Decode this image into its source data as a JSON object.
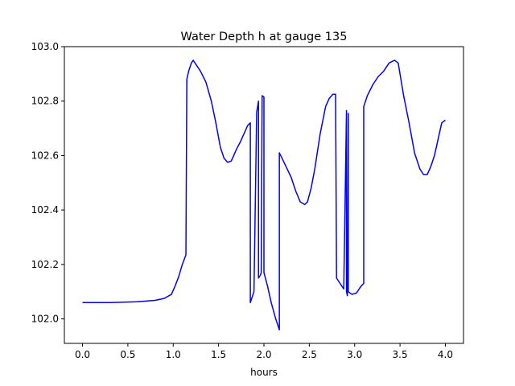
{
  "chart_data": {
    "type": "line",
    "title": "Water Depth h at gauge 135",
    "xlabel": "hours",
    "ylabel": "",
    "xlim": [
      -0.2,
      4.2
    ],
    "ylim": [
      101.91,
      103.0
    ],
    "xticks": [
      0.0,
      0.5,
      1.0,
      1.5,
      2.0,
      2.5,
      3.0,
      3.5,
      4.0
    ],
    "xtick_labels": [
      "0.0",
      "0.5",
      "1.0",
      "1.5",
      "2.0",
      "2.5",
      "3.0",
      "3.5",
      "4.0"
    ],
    "yticks": [
      102.0,
      102.2,
      102.4,
      102.6,
      102.8,
      103.0
    ],
    "ytick_labels": [
      "102.0",
      "102.2",
      "102.4",
      "102.6",
      "102.8",
      "103.0"
    ],
    "grid": false,
    "legend": "none",
    "series": [
      {
        "color": "#0000ff",
        "x": [
          0.0,
          0.3,
          0.6,
          0.8,
          0.9,
          0.98,
          1.02,
          1.06,
          1.1,
          1.14,
          1.15,
          1.17,
          1.2,
          1.22,
          1.26,
          1.3,
          1.36,
          1.42,
          1.47,
          1.52,
          1.56,
          1.6,
          1.64,
          1.68,
          1.7,
          1.74,
          1.78,
          1.82,
          1.85,
          1.85,
          1.88,
          1.89,
          1.92,
          1.94,
          1.94,
          1.96,
          1.97,
          1.98,
          2.0,
          2.0,
          2.04,
          2.08,
          2.13,
          2.17,
          2.17,
          2.2,
          2.25,
          2.3,
          2.35,
          2.4,
          2.45,
          2.48,
          2.52,
          2.56,
          2.62,
          2.68,
          2.72,
          2.76,
          2.79,
          2.8,
          2.8,
          2.84,
          2.88,
          2.91,
          2.91,
          2.92,
          2.93,
          2.93,
          2.97,
          3.02,
          3.07,
          3.1,
          3.1,
          3.14,
          3.2,
          3.26,
          3.32,
          3.38,
          3.44,
          3.48,
          3.5,
          3.54,
          3.6,
          3.66,
          3.72,
          3.76,
          3.8,
          3.84,
          3.88,
          3.92,
          3.96,
          4.0
        ],
        "y": [
          102.06,
          102.06,
          102.063,
          102.068,
          102.075,
          102.09,
          102.12,
          102.155,
          102.2,
          102.235,
          102.88,
          102.91,
          102.94,
          102.95,
          102.93,
          102.91,
          102.87,
          102.8,
          102.72,
          102.63,
          102.59,
          102.575,
          102.58,
          102.61,
          102.625,
          102.65,
          102.68,
          102.71,
          102.72,
          102.06,
          102.09,
          102.1,
          102.76,
          102.8,
          102.15,
          102.16,
          102.17,
          102.82,
          102.815,
          102.17,
          102.12,
          102.06,
          102.0,
          101.96,
          102.61,
          102.59,
          102.555,
          102.52,
          102.47,
          102.43,
          102.42,
          102.43,
          102.48,
          102.55,
          102.68,
          102.78,
          102.81,
          102.825,
          102.825,
          102.17,
          102.15,
          102.13,
          102.11,
          102.765,
          102.1,
          102.085,
          102.755,
          102.1,
          102.09,
          102.095,
          102.12,
          102.13,
          102.78,
          102.82,
          102.86,
          102.89,
          102.91,
          102.94,
          102.95,
          102.94,
          102.9,
          102.82,
          102.72,
          102.61,
          102.55,
          102.53,
          102.53,
          102.56,
          102.6,
          102.66,
          102.72,
          102.73
        ]
      }
    ]
  }
}
